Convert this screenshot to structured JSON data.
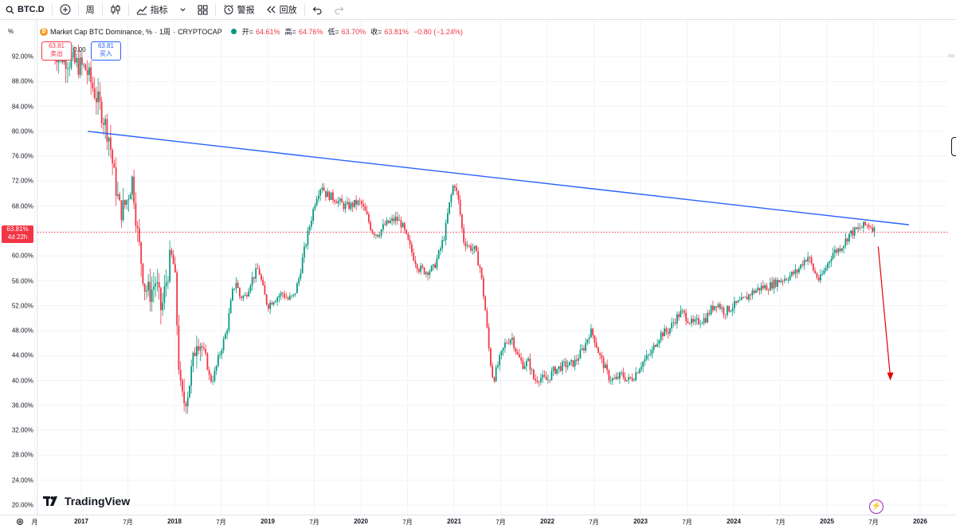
{
  "toolbar": {
    "symbol": "BTC.D",
    "interval": "周",
    "indicators": "指标",
    "alert": "警报",
    "replay": "回放"
  },
  "legend": {
    "coin_badge": "₿",
    "title": "Market Cap BTC Dominance, %",
    "interval": "1周",
    "source": "CRYPTOCAP",
    "open_label": "开=",
    "open": "64.61%",
    "high_label": "高=",
    "high": "64.76%",
    "low_label": "低=",
    "low": "63.70%",
    "close_label": "收=",
    "close": "63.81%",
    "change": "−0.80 (−1.24%)"
  },
  "trade": {
    "sell_price": "63.81",
    "sell_label": "卖出",
    "spread": "0.00",
    "buy_price": "63.81",
    "buy_label": "买入"
  },
  "axis": {
    "unit": "%",
    "current_value": "63.81%",
    "countdown": "4d 22h"
  },
  "footer": {
    "brand": "TradingView"
  },
  "colors": {
    "up": "#089981",
    "down": "#f23645",
    "trendline": "#2962ff",
    "arrow": "#e00000"
  },
  "chart_data": {
    "type": "candlestick",
    "title": "Market Cap BTC Dominance, %",
    "interval": "1周",
    "ylim": [
      20,
      96
    ],
    "y_ticks": [
      "92.00%",
      "88.00%",
      "84.00%",
      "80.00%",
      "76.00%",
      "72.00%",
      "68.00%",
      "64.00%",
      "60.00%",
      "56.00%",
      "52.00%",
      "48.00%",
      "44.00%",
      "40.00%",
      "36.00%",
      "32.00%",
      "28.00%",
      "24.00%",
      "20.00%"
    ],
    "y_tick_values": [
      92,
      88,
      84,
      80,
      76,
      72,
      68,
      64,
      60,
      56,
      52,
      48,
      44,
      40,
      36,
      32,
      28,
      24,
      20
    ],
    "x_ticks": [
      {
        "label": "月",
        "t": 2016.5
      },
      {
        "label": "2017",
        "t": 2017.0,
        "bold": true
      },
      {
        "label": "7月",
        "t": 2017.5
      },
      {
        "label": "2018",
        "t": 2018.0,
        "bold": true
      },
      {
        "label": "7月",
        "t": 2018.5
      },
      {
        "label": "2019",
        "t": 2019.0,
        "bold": true
      },
      {
        "label": "7月",
        "t": 2019.5
      },
      {
        "label": "2020",
        "t": 2020.0,
        "bold": true
      },
      {
        "label": "7月",
        "t": 2020.5
      },
      {
        "label": "2021",
        "t": 2021.0,
        "bold": true
      },
      {
        "label": "7月",
        "t": 2021.5
      },
      {
        "label": "2022",
        "t": 2022.0,
        "bold": true
      },
      {
        "label": "7月",
        "t": 2022.5
      },
      {
        "label": "2023",
        "t": 2023.0,
        "bold": true
      },
      {
        "label": "7月",
        "t": 2023.5
      },
      {
        "label": "2024",
        "t": 2024.0,
        "bold": true
      },
      {
        "label": "7月",
        "t": 2024.5
      },
      {
        "label": "2025",
        "t": 2025.0,
        "bold": true
      },
      {
        "label": "7月",
        "t": 2025.5
      },
      {
        "label": "2026",
        "t": 2026.0,
        "bold": true
      }
    ],
    "series_path": [
      [
        2016.7,
        93.0
      ],
      [
        2016.85,
        91.5
      ],
      [
        2017.05,
        90.0
      ],
      [
        2017.15,
        86.0
      ],
      [
        2017.22,
        83.0
      ],
      [
        2017.3,
        79.0
      ],
      [
        2017.36,
        72.0
      ],
      [
        2017.42,
        67.0
      ],
      [
        2017.48,
        68.5
      ],
      [
        2017.55,
        72.5
      ],
      [
        2017.6,
        64.0
      ],
      [
        2017.68,
        55.0
      ],
      [
        2017.74,
        54.0
      ],
      [
        2017.8,
        56.0
      ],
      [
        2017.86,
        51.0
      ],
      [
        2017.9,
        55.0
      ],
      [
        2017.96,
        60.0
      ],
      [
        2018.0,
        58.0
      ],
      [
        2018.02,
        52.0
      ],
      [
        2018.04,
        44.0
      ],
      [
        2018.07,
        37.5
      ],
      [
        2018.1,
        36.5
      ],
      [
        2018.14,
        38.0
      ],
      [
        2018.2,
        43.0
      ],
      [
        2018.24,
        47.0
      ],
      [
        2018.28,
        46.0
      ],
      [
        2018.34,
        43.5
      ],
      [
        2018.38,
        40.0
      ],
      [
        2018.42,
        40.5
      ],
      [
        2018.48,
        44.0
      ],
      [
        2018.56,
        48.0
      ],
      [
        2018.62,
        54.0
      ],
      [
        2018.66,
        56.0
      ],
      [
        2018.7,
        53.5
      ],
      [
        2018.76,
        53.5
      ],
      [
        2018.82,
        56.0
      ],
      [
        2018.9,
        58.0
      ],
      [
        2018.96,
        54.0
      ],
      [
        2019.0,
        52.0
      ],
      [
        2019.06,
        53.0
      ],
      [
        2019.16,
        54.0
      ],
      [
        2019.22,
        53.0
      ],
      [
        2019.28,
        53.5
      ],
      [
        2019.33,
        56.0
      ],
      [
        2019.38,
        60.0
      ],
      [
        2019.46,
        65.5
      ],
      [
        2019.52,
        69.5
      ],
      [
        2019.58,
        71.5
      ],
      [
        2019.62,
        70.0
      ],
      [
        2019.68,
        69.5
      ],
      [
        2019.74,
        69.0
      ],
      [
        2019.82,
        68.0
      ],
      [
        2019.88,
        68.0
      ],
      [
        2019.95,
        68.5
      ],
      [
        2020.0,
        68.5
      ],
      [
        2020.06,
        66.5
      ],
      [
        2020.12,
        64.0
      ],
      [
        2020.18,
        63.5
      ],
      [
        2020.26,
        65.0
      ],
      [
        2020.32,
        65.5
      ],
      [
        2020.38,
        66.0
      ],
      [
        2020.44,
        65.0
      ],
      [
        2020.5,
        62.5
      ],
      [
        2020.56,
        60.0
      ],
      [
        2020.62,
        58.0
      ],
      [
        2020.7,
        57.5
      ],
      [
        2020.78,
        58.0
      ],
      [
        2020.84,
        60.5
      ],
      [
        2020.9,
        63.5
      ],
      [
        2020.94,
        67.5
      ],
      [
        2021.0,
        72.0
      ],
      [
        2021.05,
        68.5
      ],
      [
        2021.1,
        62.5
      ],
      [
        2021.16,
        61.5
      ],
      [
        2021.22,
        61.0
      ],
      [
        2021.28,
        58.0
      ],
      [
        2021.33,
        52.0
      ],
      [
        2021.38,
        44.0
      ],
      [
        2021.42,
        40.0
      ],
      [
        2021.48,
        43.0
      ],
      [
        2021.55,
        46.0
      ],
      [
        2021.62,
        47.0
      ],
      [
        2021.68,
        44.0
      ],
      [
        2021.74,
        42.5
      ],
      [
        2021.8,
        43.0
      ],
      [
        2021.86,
        40.0
      ],
      [
        2021.92,
        40.5
      ],
      [
        2022.0,
        40.0
      ],
      [
        2022.06,
        41.5
      ],
      [
        2022.12,
        42.0
      ],
      [
        2022.18,
        42.5
      ],
      [
        2022.24,
        42.5
      ],
      [
        2022.3,
        43.0
      ],
      [
        2022.34,
        44.0
      ],
      [
        2022.4,
        45.5
      ],
      [
        2022.46,
        48.0
      ],
      [
        2022.5,
        47.0
      ],
      [
        2022.56,
        44.0
      ],
      [
        2022.62,
        42.0
      ],
      [
        2022.66,
        40.5
      ],
      [
        2022.72,
        40.0
      ],
      [
        2022.76,
        40.5
      ],
      [
        2022.8,
        41.0
      ],
      [
        2022.86,
        40.0
      ],
      [
        2022.92,
        40.5
      ],
      [
        2023.0,
        42.5
      ],
      [
        2023.06,
        43.5
      ],
      [
        2023.12,
        44.5
      ],
      [
        2023.16,
        46.0
      ],
      [
        2023.22,
        47.5
      ],
      [
        2023.3,
        48.0
      ],
      [
        2023.38,
        50.0
      ],
      [
        2023.44,
        51.0
      ],
      [
        2023.5,
        50.0
      ],
      [
        2023.56,
        49.0
      ],
      [
        2023.62,
        49.5
      ],
      [
        2023.7,
        50.0
      ],
      [
        2023.76,
        51.5
      ],
      [
        2023.82,
        52.5
      ],
      [
        2023.9,
        51.0
      ],
      [
        2024.0,
        52.0
      ],
      [
        2024.06,
        52.5
      ],
      [
        2024.12,
        53.0
      ],
      [
        2024.18,
        54.0
      ],
      [
        2024.24,
        54.5
      ],
      [
        2024.3,
        55.0
      ],
      [
        2024.36,
        55.0
      ],
      [
        2024.42,
        55.5
      ],
      [
        2024.48,
        56.0
      ],
      [
        2024.56,
        56.5
      ],
      [
        2024.62,
        57.0
      ],
      [
        2024.68,
        57.5
      ],
      [
        2024.74,
        59.0
      ],
      [
        2024.8,
        60.0
      ],
      [
        2024.86,
        57.5
      ],
      [
        2024.92,
        56.0
      ],
      [
        2025.0,
        58.5
      ],
      [
        2025.06,
        60.5
      ],
      [
        2025.12,
        61.0
      ],
      [
        2025.18,
        62.0
      ],
      [
        2025.24,
        63.5
      ],
      [
        2025.3,
        64.0
      ],
      [
        2025.36,
        64.5
      ],
      [
        2025.42,
        65.0
      ],
      [
        2025.48,
        64.8
      ],
      [
        2025.52,
        63.81
      ]
    ],
    "annotations": {
      "trendline": {
        "start": [
          2017.07,
          80.0
        ],
        "end": [
          2025.88,
          65.0
        ]
      },
      "current_price_line": 63.81,
      "down_arrow": {
        "start": [
          2025.55,
          61.5
        ],
        "end": [
          2025.68,
          40.0
        ]
      }
    }
  }
}
